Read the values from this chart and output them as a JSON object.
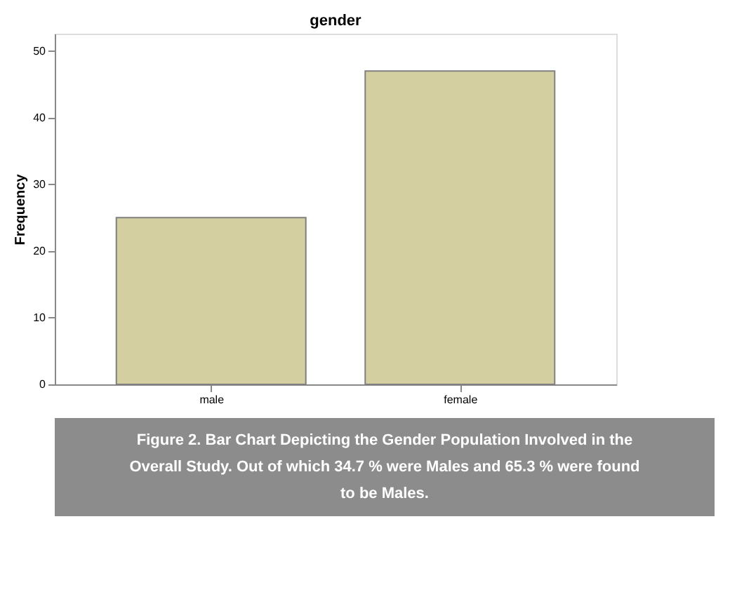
{
  "chart_data": {
    "type": "bar",
    "title": "gender",
    "ylabel": "Frequency",
    "categories": [
      "male",
      "female"
    ],
    "values": [
      25,
      47
    ],
    "color": "#d3cfa0",
    "ylim": [
      0,
      52.6
    ],
    "yticks": [
      0,
      10,
      20,
      30,
      40,
      50
    ],
    "grid": false,
    "annotations": [
      "Figure 2. Bar Chart Depicting the Gender Population Involved in the Overall Study. Out of which 34.7 % were Males and 65.3 % were found to be Males."
    ]
  }
}
